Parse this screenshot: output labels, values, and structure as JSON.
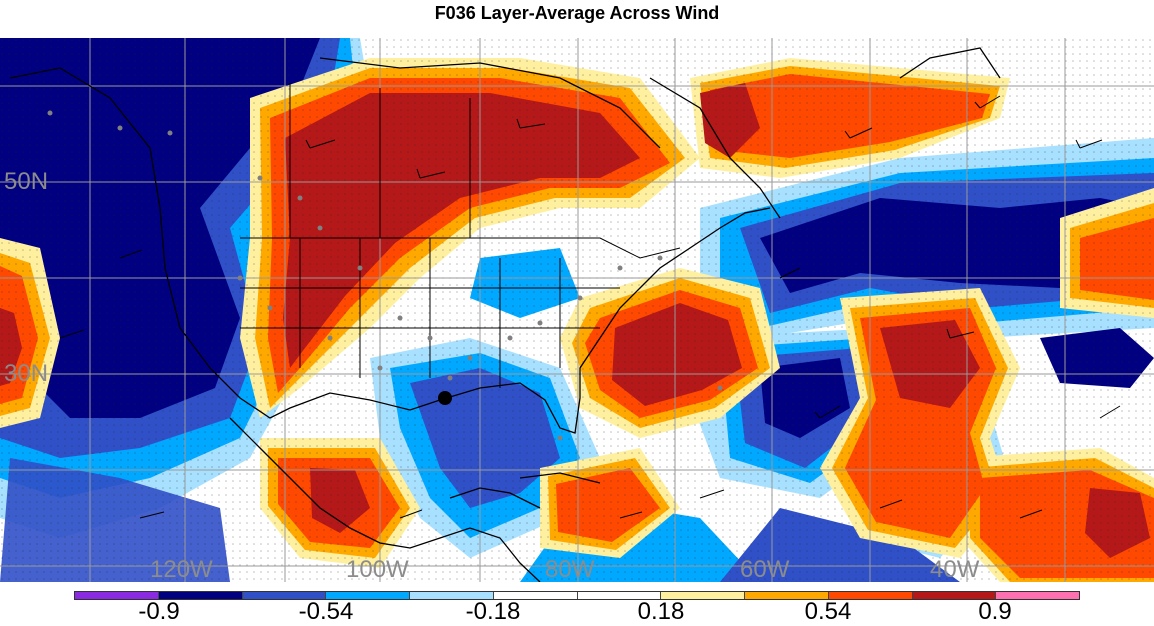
{
  "title": "F036 Layer-Average Across Wind",
  "map": {
    "lat_labels": [
      "50N",
      "30N"
    ],
    "lon_labels": [
      "120W",
      "100W",
      "80W",
      "60W",
      "40W"
    ]
  },
  "colorbar": {
    "colors": [
      "#8a2be2",
      "#000080",
      "#3050c8",
      "#00a8ff",
      "#a8e0ff",
      "#ffffff",
      "#ffffff",
      "#fff0a0",
      "#ffa800",
      "#ff4800",
      "#b41818",
      "#ff70b0"
    ],
    "tick_labels": [
      "-0.9",
      "-0.54",
      "-0.18",
      "0.18",
      "0.54",
      "0.9"
    ]
  }
}
